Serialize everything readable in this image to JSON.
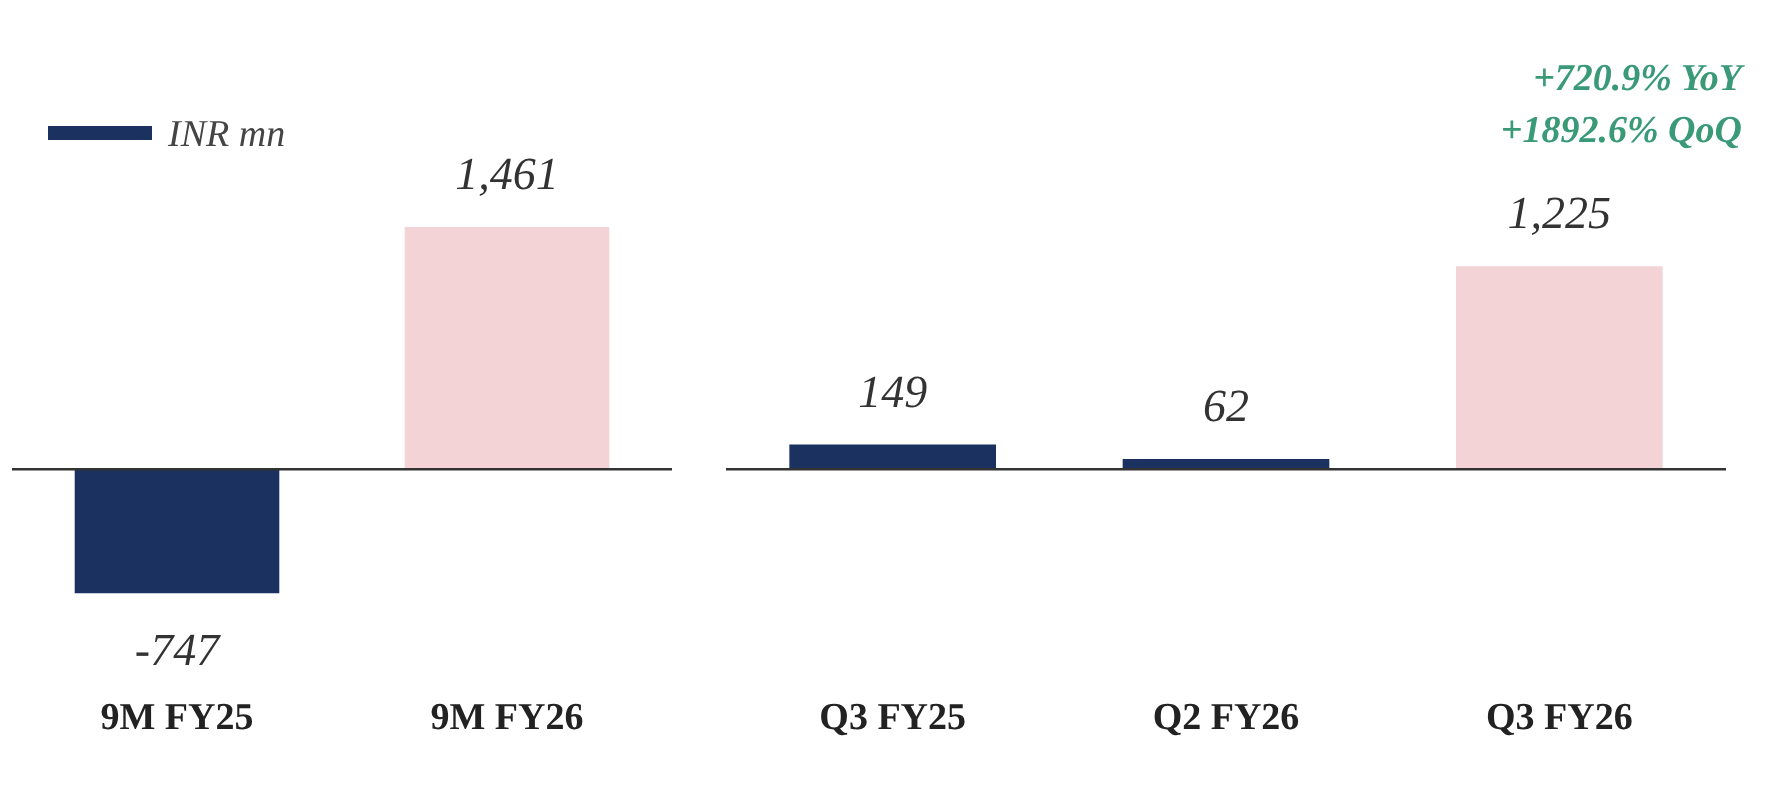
{
  "chart_data": [
    {
      "type": "bar",
      "categories": [
        "9M FY25",
        "9M FY26"
      ],
      "tick_labels": "x",
      "legend": "top left",
      "grid": false,
      "series": [
        {
          "name": "INR mn",
          "color": "#1b3160",
          "colors": [
            null,
            "#f3d3d6"
          ],
          "values": [
            -747,
            1461
          ],
          "value_labels": [
            "-747",
            "1,461"
          ]
        }
      ]
    },
    {
      "type": "bar",
      "categories": [
        "Q3 FY25",
        "Q2 FY26",
        "Q3 FY26"
      ],
      "tick_labels": "x",
      "grid": false,
      "annotations": [
        "+720.9% YoY",
        "+1892.6% QoQ"
      ],
      "series": [
        {
          "color": "#1b3160",
          "colors": [
            null,
            null,
            "#f3d3d6"
          ],
          "values": [
            149,
            62,
            1225
          ],
          "value_labels": [
            "149",
            "62",
            "1,225"
          ]
        }
      ]
    }
  ]
}
